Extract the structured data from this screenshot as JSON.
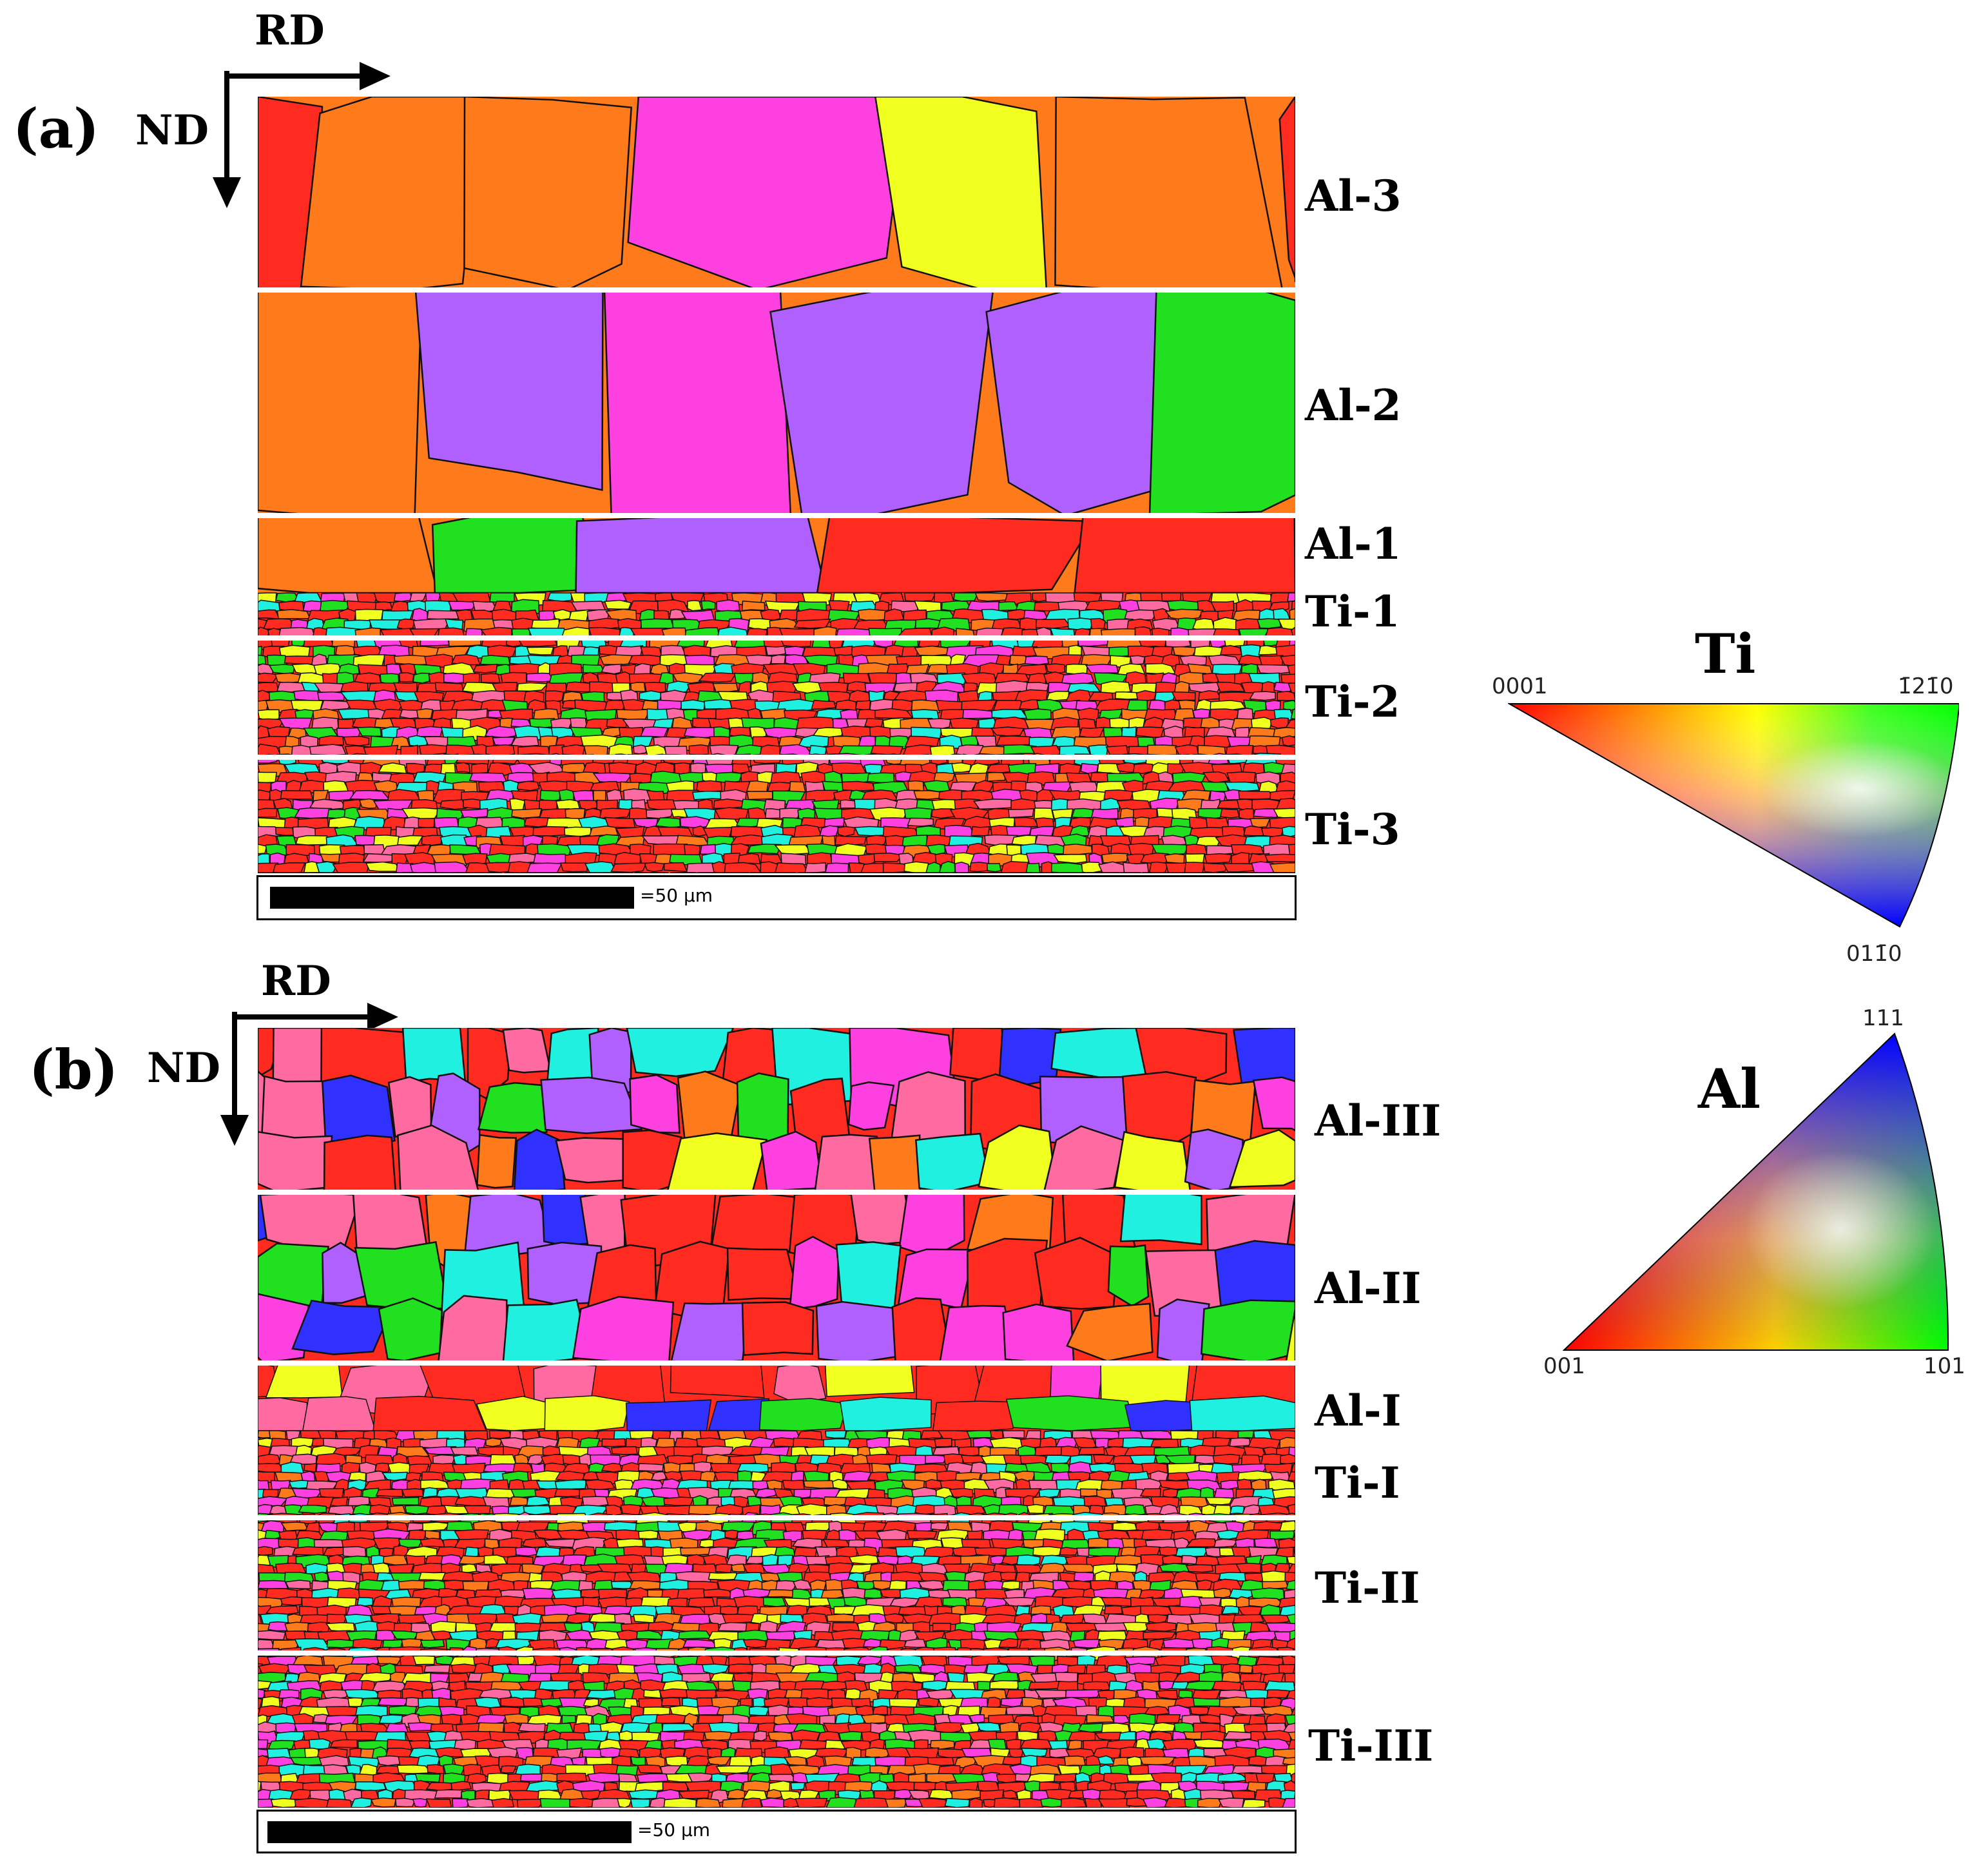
{
  "panels": [
    {
      "label": "(a)",
      "rd": "RD",
      "nd": "ND",
      "layers": [
        "Al-3",
        "Al-2",
        "Al-1",
        "Ti-1",
        "Ti-2",
        "Ti-3"
      ],
      "scale": "=50 µm"
    },
    {
      "label": "(b)",
      "rd": "RD",
      "nd": "ND",
      "layers": [
        "Al-III",
        "Al-II",
        "Al-I",
        "Ti-I",
        "Ti-II",
        "Ti-III"
      ],
      "scale": "=50 µm"
    }
  ],
  "legend_ti": {
    "title": "Ti",
    "corner_left": "0001",
    "corner_right": "1̄21̄0",
    "corner_bottom": "011̄0"
  },
  "legend_al": {
    "title": "Al",
    "corner_top": "111",
    "corner_left": "001",
    "corner_right": "101"
  },
  "colors": {
    "red": "#ff2a20",
    "orange": "#ff7a1a",
    "magenta": "#ff40e0",
    "violet": "#b060ff",
    "blue": "#3030ff",
    "green": "#20e020",
    "yellow": "#f0ff20",
    "cyan": "#20f0e0",
    "pink": "#ff6aa0"
  }
}
